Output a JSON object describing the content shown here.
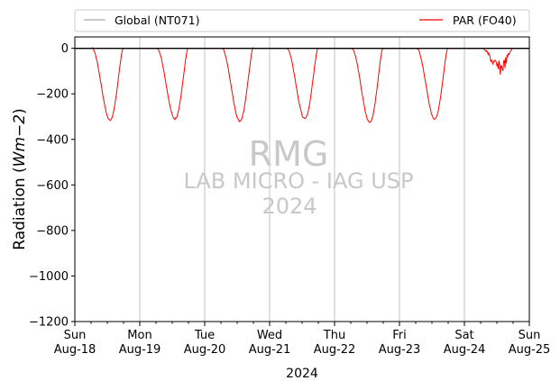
{
  "chart_data": {
    "type": "line",
    "xlabel": "2024",
    "ylabel": "Radiation ($Wm{-2}$)",
    "ylabel_prefix": "Radiation (",
    "ylabel_math": "Wm",
    "ylabel_exp": "−2",
    "ylabel_suffix": ")",
    "ylim": [
      -1200,
      50
    ],
    "yticks": [
      0,
      -200,
      -400,
      -600,
      -800,
      -1000,
      -1200
    ],
    "ytick_labels": [
      "0",
      "−200",
      "−400",
      "−600",
      "−800",
      "−1000",
      "−1200"
    ],
    "xlim": [
      "2024-08-18",
      "2024-08-25"
    ],
    "xticks": [
      {
        "day": "Sun",
        "date": "Aug-18"
      },
      {
        "day": "Mon",
        "date": "Aug-19"
      },
      {
        "day": "Tue",
        "date": "Aug-20"
      },
      {
        "day": "Wed",
        "date": "Aug-21"
      },
      {
        "day": "Thu",
        "date": "Aug-22"
      },
      {
        "day": "Fri",
        "date": "Aug-23"
      },
      {
        "day": "Sat",
        "date": "Aug-24"
      },
      {
        "day": "Sun",
        "date": "Aug-25"
      }
    ],
    "grid": "vertical",
    "legend": {
      "placement": "top-outside",
      "entries": [
        {
          "name": "Global (NT071)",
          "color": "#aaaaaa"
        },
        {
          "name": "PAR (FO40)",
          "color": "#ff0000"
        }
      ]
    },
    "series": [
      {
        "name": "Global (NT071)",
        "color": "#aaaaaa",
        "x": [
          "2024-08-18",
          "2024-08-25"
        ],
        "values": [
          0,
          0
        ]
      },
      {
        "name": "PAR (FO40)",
        "color": "#ff0000",
        "daily_peaks": [
          {
            "date": "2024-08-18",
            "min": -315
          },
          {
            "date": "2024-08-19",
            "min": -310
          },
          {
            "date": "2024-08-20",
            "min": -320
          },
          {
            "date": "2024-08-21",
            "min": -310
          },
          {
            "date": "2024-08-22",
            "min": -325
          },
          {
            "date": "2024-08-23",
            "min": -310
          },
          {
            "date": "2024-08-24",
            "min": -120
          }
        ]
      }
    ],
    "zero_line_color": "#000000"
  },
  "watermark": {
    "line1": "RMG",
    "line2": "LAB MICRO - IAG USP",
    "line3": "2024"
  }
}
